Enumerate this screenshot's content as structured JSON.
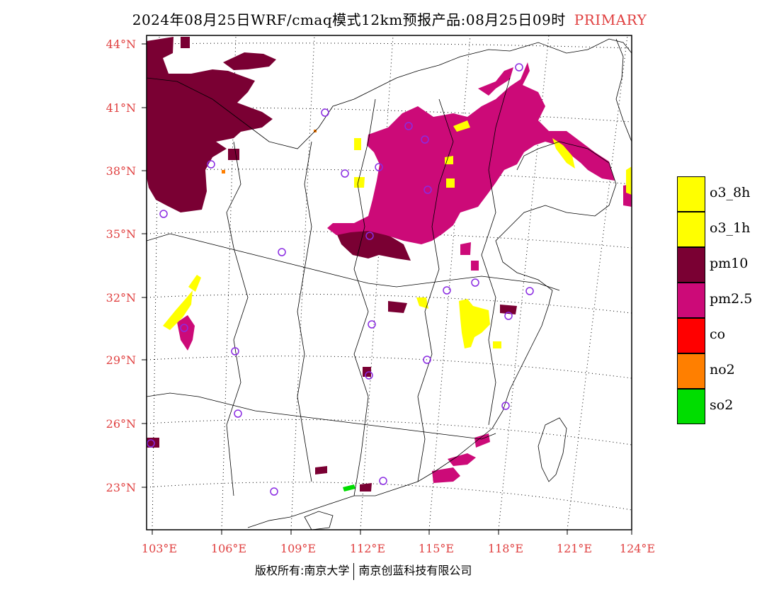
{
  "title": {
    "main": "2024年08月25日WRF/cmaq模式12km预报产品:08月25日09时",
    "tag": "PRIMARY"
  },
  "map": {
    "lat_labels": [
      "44°N",
      "41°N",
      "38°N",
      "35°N",
      "32°N",
      "29°N",
      "26°N",
      "23°N"
    ],
    "lon_labels": [
      "103°E",
      "106°E",
      "109°E",
      "112°E",
      "115°E",
      "118°E",
      "121°E",
      "124°E"
    ],
    "layers": {
      "pm10_color": "#7a0033",
      "pm25_color": "#cc0a78",
      "o3_color": "#ffff00",
      "so2_color": "#00dd00",
      "no2_color": "#ff7f00",
      "station_color": "#8a2be2"
    }
  },
  "legend": [
    {
      "label": "o3_8h",
      "color": "#ffff00"
    },
    {
      "label": "o3_1h",
      "color": "#ffff00"
    },
    {
      "label": "pm10",
      "color": "#7a0033"
    },
    {
      "label": "pm2.5",
      "color": "#cc0a78"
    },
    {
      "label": "co",
      "color": "#ff0000"
    },
    {
      "label": "no2",
      "color": "#ff7f00"
    },
    {
      "label": "so2",
      "color": "#00dd00"
    }
  ],
  "footer": {
    "left": "版权所有:南京大学",
    "right": "南京创蓝科技有限公司"
  }
}
